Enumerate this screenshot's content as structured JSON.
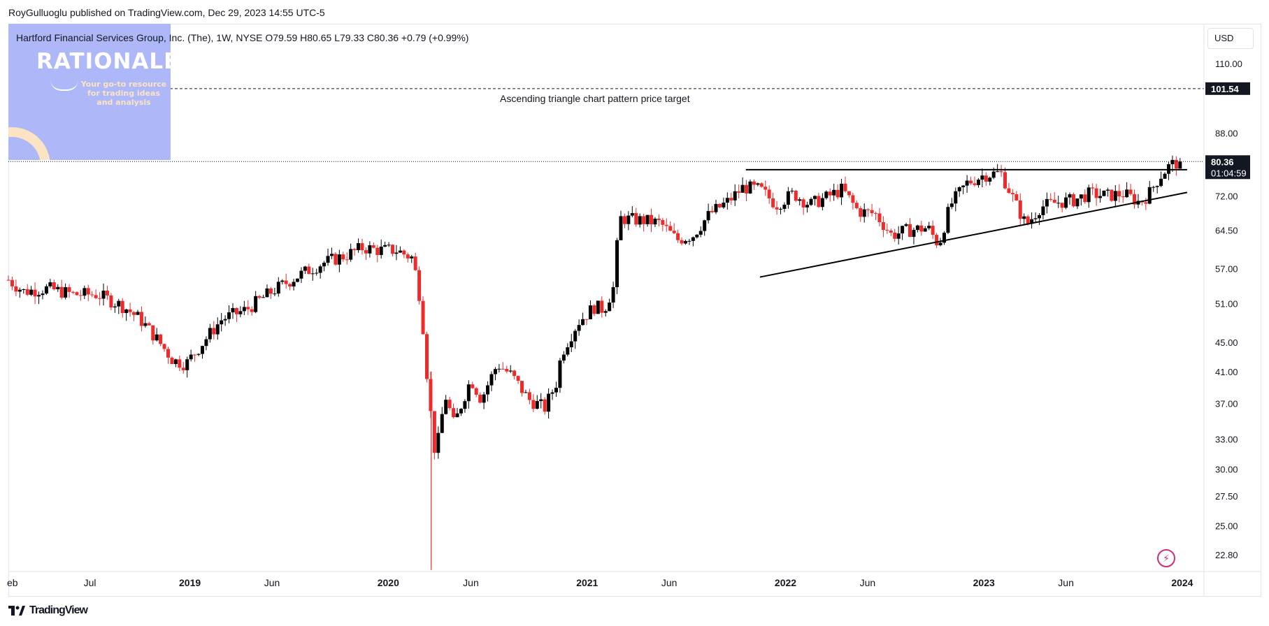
{
  "header": {
    "published": "RoyGulluoglu published on TradingView.com, Dec 29, 2023 14:55 UTC-5"
  },
  "legend": {
    "text": "Hartford Financial Services Group, Inc. (The), 1W, NYSE  O79.59  H80.65  L79.33  C80.36  +0.79 (+0.99%)"
  },
  "logo": {
    "brand": "RATIONALE",
    "tagline": "Your go-to resource for trading ideas and analysis"
  },
  "currency": "USD",
  "annotation": "Ascending triangle chart pattern price target",
  "footer": {
    "brand": "TradingView",
    "icon": "tradingview-logo-icon"
  },
  "colors": {
    "up": "#000000",
    "down": "#ef2a2a",
    "grid": "#f0f3fa"
  },
  "chart_data": {
    "type": "candlestick",
    "timeframe": "1W",
    "y_scale": "log",
    "ylim": [
      21.6,
      125
    ],
    "xlim": [
      "2018-02-01",
      "2024-02-10"
    ],
    "y_ticks": [
      "110.00",
      "88.00",
      "72.00",
      "64.50",
      "57.00",
      "51.00",
      "45.00",
      "41.00",
      "37.00",
      "33.00",
      "30.00",
      "27.50",
      "25.00",
      "22.80"
    ],
    "x_ticks": [
      {
        "date": "2018-02-01",
        "label": "eb",
        "bold": false
      },
      {
        "date": "2018-07-01",
        "label": "Jul",
        "bold": false
      },
      {
        "date": "2019-01-01",
        "label": "2019",
        "bold": true
      },
      {
        "date": "2019-06-01",
        "label": "Jun",
        "bold": false
      },
      {
        "date": "2020-01-01",
        "label": "2020",
        "bold": true
      },
      {
        "date": "2020-06-01",
        "label": "Jun",
        "bold": false
      },
      {
        "date": "2021-01-01",
        "label": "2021",
        "bold": true
      },
      {
        "date": "2021-06-01",
        "label": "Jun",
        "bold": false
      },
      {
        "date": "2022-01-01",
        "label": "2022",
        "bold": true
      },
      {
        "date": "2022-06-01",
        "label": "Jun",
        "bold": false
      },
      {
        "date": "2023-01-01",
        "label": "2023",
        "bold": true
      },
      {
        "date": "2023-06-01",
        "label": "Jun",
        "bold": false
      },
      {
        "date": "2024-01-01",
        "label": "2024",
        "bold": true
      }
    ],
    "price_labels": [
      {
        "price": 101.54,
        "label": "101.54"
      },
      {
        "price": 80.36,
        "label": "80.36",
        "sub": "01:04:59"
      }
    ],
    "target_line": {
      "price": 101.54,
      "style": "dashed"
    },
    "last_price_line": {
      "price": 80.36,
      "style": "dotted"
    },
    "trendlines": [
      {
        "name": "resistance",
        "from": [
          "2021-10-20",
          78.3
        ],
        "to": [
          "2024-01-10",
          78.3
        ]
      },
      {
        "name": "support",
        "from": [
          "2021-11-15",
          55.5
        ],
        "to": [
          "2024-01-10",
          72.8
        ]
      }
    ],
    "close_path": [
      [
        "2018-02-01",
        55.0
      ],
      [
        "2018-03-01",
        53.0
      ],
      [
        "2018-04-15",
        53.5
      ],
      [
        "2018-06-01",
        52.5
      ],
      [
        "2018-07-15",
        52.5
      ],
      [
        "2018-09-01",
        50.5
      ],
      [
        "2018-10-01",
        48.5
      ],
      [
        "2018-11-01",
        45.5
      ],
      [
        "2018-12-01",
        42.5
      ],
      [
        "2018-12-25",
        42.0
      ],
      [
        "2019-01-20",
        44.5
      ],
      [
        "2019-03-01",
        48.5
      ],
      [
        "2019-04-15",
        50.0
      ],
      [
        "2019-06-01",
        53.0
      ],
      [
        "2019-07-15",
        55.5
      ],
      [
        "2019-09-01",
        58.0
      ],
      [
        "2019-10-15",
        59.5
      ],
      [
        "2019-11-15",
        61.0
      ],
      [
        "2019-12-15",
        60.5
      ],
      [
        "2020-01-15",
        60.5
      ],
      [
        "2020-02-15",
        59.0
      ],
      [
        "2020-03-01",
        51.0
      ],
      [
        "2020-03-15",
        38.0
      ],
      [
        "2020-03-28",
        31.0
      ],
      [
        "2020-04-15",
        38.0
      ],
      [
        "2020-05-01",
        34.5
      ],
      [
        "2020-06-01",
        40.0
      ],
      [
        "2020-06-20",
        37.5
      ],
      [
        "2020-07-20",
        42.0
      ],
      [
        "2020-08-15",
        40.5
      ],
      [
        "2020-09-15",
        37.5
      ],
      [
        "2020-10-15",
        36.5
      ],
      [
        "2020-11-05",
        39.5
      ],
      [
        "2020-11-15",
        43.5
      ],
      [
        "2020-12-15",
        48.0
      ],
      [
        "2021-01-15",
        50.5
      ],
      [
        "2021-02-01",
        50.0
      ],
      [
        "2021-02-20",
        54.0
      ],
      [
        "2021-03-01",
        67.0
      ],
      [
        "2021-04-15",
        66.5
      ],
      [
        "2021-05-15",
        66.0
      ],
      [
        "2021-06-15",
        62.5
      ],
      [
        "2021-07-15",
        63.5
      ],
      [
        "2021-08-15",
        68.0
      ],
      [
        "2021-09-15",
        70.5
      ],
      [
        "2021-10-15",
        74.0
      ],
      [
        "2021-11-15",
        73.5
      ],
      [
        "2021-12-15",
        70.0
      ],
      [
        "2022-01-15",
        72.5
      ],
      [
        "2022-02-15",
        70.0
      ],
      [
        "2022-03-15",
        71.5
      ],
      [
        "2022-04-15",
        73.5
      ],
      [
        "2022-05-15",
        68.5
      ],
      [
        "2022-06-15",
        68.0
      ],
      [
        "2022-07-15",
        63.5
      ],
      [
        "2022-08-15",
        64.5
      ],
      [
        "2022-09-20",
        65.0
      ],
      [
        "2022-10-10",
        61.5
      ],
      [
        "2022-11-01",
        70.0
      ],
      [
        "2022-12-01",
        75.0
      ],
      [
        "2023-01-01",
        77.0
      ],
      [
        "2023-02-01",
        77.5
      ],
      [
        "2023-03-01",
        70.0
      ],
      [
        "2023-03-20",
        65.5
      ],
      [
        "2023-04-15",
        69.5
      ],
      [
        "2023-05-15",
        70.5
      ],
      [
        "2023-06-15",
        71.0
      ],
      [
        "2023-07-15",
        72.5
      ],
      [
        "2023-08-15",
        72.0
      ],
      [
        "2023-09-15",
        72.5
      ],
      [
        "2023-10-15",
        70.5
      ],
      [
        "2023-11-01",
        72.5
      ],
      [
        "2023-11-20",
        76.5
      ],
      [
        "2023-12-10",
        79.5
      ],
      [
        "2023-12-29",
        80.36
      ]
    ]
  }
}
